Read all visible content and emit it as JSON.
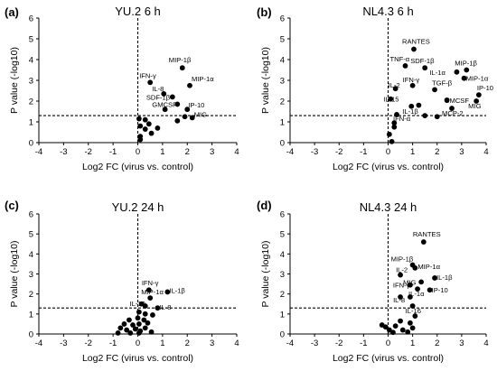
{
  "chart_data": [
    {
      "type": "scatter",
      "letter": "(a)",
      "title": "YU.2 6 h",
      "xlabel": "Log2 FC (virus vs. control)",
      "ylabel": "P value (-log10)",
      "xlim": [
        -4,
        4
      ],
      "ylim": [
        0,
        6
      ],
      "xticks": [
        "-4",
        "-3",
        "-2",
        "-1",
        "0",
        "1",
        "2",
        "3",
        "4"
      ],
      "yticks": [
        "0",
        "1",
        "2",
        "3",
        "4",
        "5",
        "6"
      ],
      "threshold_y": 1.3,
      "threshold_x": 0,
      "points": [
        {
          "x": 1.8,
          "y": 3.6,
          "label": "MIP-1β"
        },
        {
          "x": 2.1,
          "y": 2.75,
          "label": "MIP-1α"
        },
        {
          "x": 0.5,
          "y": 2.9,
          "label": "IFN-γ"
        },
        {
          "x": 1.05,
          "y": 2.35,
          "label": "IL-8"
        },
        {
          "x": 1.4,
          "y": 2.2,
          "label": "SDF-1β"
        },
        {
          "x": 1.6,
          "y": 1.85,
          "label": "GMCSF"
        },
        {
          "x": 2.0,
          "y": 1.6,
          "label": "IP-10"
        },
        {
          "x": 2.2,
          "y": 1.2,
          "label": "MIG"
        },
        {
          "x": 1.1,
          "y": 1.6,
          "label": ""
        },
        {
          "x": 0.05,
          "y": 1.15,
          "label": ""
        },
        {
          "x": 0.3,
          "y": 1.1,
          "label": ""
        },
        {
          "x": 0.45,
          "y": 0.9,
          "label": ""
        },
        {
          "x": 0.1,
          "y": 0.8,
          "label": ""
        },
        {
          "x": 0.3,
          "y": 0.65,
          "label": ""
        },
        {
          "x": 0.8,
          "y": 0.7,
          "label": ""
        },
        {
          "x": 0.55,
          "y": 0.45,
          "label": ""
        },
        {
          "x": 0.1,
          "y": 0.3,
          "label": ""
        },
        {
          "x": 0.1,
          "y": 0.15,
          "label": ""
        },
        {
          "x": 1.6,
          "y": 1.05,
          "label": ""
        },
        {
          "x": 1.9,
          "y": 1.25,
          "label": ""
        }
      ]
    },
    {
      "type": "scatter",
      "letter": "(b)",
      "title": "NL4.3 6 h",
      "xlabel": "Log2 FC (virus vs. control)",
      "ylabel": "P value (-log10)",
      "xlim": [
        -4,
        4
      ],
      "ylim": [
        0,
        6
      ],
      "xticks": [
        "-4",
        "-3",
        "-2",
        "-1",
        "0",
        "1",
        "2",
        "3",
        "4"
      ],
      "yticks": [
        "0",
        "1",
        "2",
        "3",
        "4",
        "5",
        "6"
      ],
      "threshold_y": 1.3,
      "threshold_x": 0,
      "points": [
        {
          "x": 1.05,
          "y": 4.5,
          "label": "RANTES"
        },
        {
          "x": 0.7,
          "y": 3.7,
          "label": "TNF-α"
        },
        {
          "x": 1.5,
          "y": 3.6,
          "label": "SDF-1β"
        },
        {
          "x": 3.2,
          "y": 3.5,
          "label": "MIP-1β"
        },
        {
          "x": 2.8,
          "y": 3.4,
          "label": "IL-1α"
        },
        {
          "x": 3.1,
          "y": 3.1,
          "label": "MIP-1α"
        },
        {
          "x": 1.9,
          "y": 2.55,
          "label": "TGF-β"
        },
        {
          "x": 3.7,
          "y": 2.3,
          "label": "IP-10"
        },
        {
          "x": 0.3,
          "y": 2.6,
          "label": "IL-2"
        },
        {
          "x": 1.0,
          "y": 2.75,
          "label": "IFN-γ"
        },
        {
          "x": 0.1,
          "y": 2.1,
          "label": "IL-15"
        },
        {
          "x": 2.4,
          "y": 2.05,
          "label": "GMCSF"
        },
        {
          "x": 3.6,
          "y": 2.0,
          "label": "MIG"
        },
        {
          "x": 2.6,
          "y": 1.65,
          "label": "MCP-2"
        },
        {
          "x": 0.95,
          "y": 1.75,
          "label": "IL-1β"
        },
        {
          "x": 0.35,
          "y": 1.35,
          "label": "IFN-α"
        },
        {
          "x": 1.25,
          "y": 1.8,
          "label": ""
        },
        {
          "x": 1.5,
          "y": 1.3,
          "label": ""
        },
        {
          "x": 2.0,
          "y": 1.25,
          "label": ""
        },
        {
          "x": 0.25,
          "y": 0.95,
          "label": ""
        },
        {
          "x": 0.25,
          "y": 0.75,
          "label": ""
        },
        {
          "x": 0.15,
          "y": 0.05,
          "label": ""
        },
        {
          "x": 0.05,
          "y": 0.4,
          "label": ""
        }
      ]
    },
    {
      "type": "scatter",
      "letter": "(c)",
      "title": "YU.2 24 h",
      "xlabel": "Log2 FC (virus vs. control)",
      "ylabel": "P value (-log10)",
      "xlim": [
        -4,
        4
      ],
      "ylim": [
        0,
        6
      ],
      "xticks": [
        "-4",
        "-3",
        "-2",
        "-1",
        "0",
        "1",
        "2",
        "3",
        "4"
      ],
      "yticks": [
        "0",
        "1",
        "2",
        "3",
        "4",
        "5",
        "6"
      ],
      "threshold_y": 1.3,
      "threshold_x": 0,
      "points": [
        {
          "x": 1.2,
          "y": 2.1,
          "label": "IL-1β"
        },
        {
          "x": 0.45,
          "y": 2.2,
          "label": "IFN-γ"
        },
        {
          "x": 0.5,
          "y": 1.8,
          "label": "MIP-1α"
        },
        {
          "x": 0.15,
          "y": 1.5,
          "label": "IL-10"
        },
        {
          "x": 0.8,
          "y": 1.3,
          "label": "IL-8"
        },
        {
          "x": 0.3,
          "y": 1.4,
          "label": ""
        },
        {
          "x": 0.05,
          "y": 1.1,
          "label": ""
        },
        {
          "x": 0.3,
          "y": 1.0,
          "label": ""
        },
        {
          "x": 0.6,
          "y": 0.95,
          "label": ""
        },
        {
          "x": -0.35,
          "y": 0.7,
          "label": ""
        },
        {
          "x": 0.0,
          "y": 0.8,
          "label": ""
        },
        {
          "x": 0.25,
          "y": 0.7,
          "label": ""
        },
        {
          "x": -0.55,
          "y": 0.5,
          "label": ""
        },
        {
          "x": -0.2,
          "y": 0.45,
          "label": ""
        },
        {
          "x": 0.05,
          "y": 0.5,
          "label": ""
        },
        {
          "x": 0.4,
          "y": 0.55,
          "label": ""
        },
        {
          "x": -0.7,
          "y": 0.3,
          "label": ""
        },
        {
          "x": -0.45,
          "y": 0.2,
          "label": ""
        },
        {
          "x": -0.1,
          "y": 0.25,
          "label": ""
        },
        {
          "x": 0.1,
          "y": 0.15,
          "label": ""
        },
        {
          "x": 0.3,
          "y": 0.3,
          "label": ""
        },
        {
          "x": -0.8,
          "y": 0.05,
          "label": ""
        },
        {
          "x": -0.3,
          "y": 0.05,
          "label": ""
        },
        {
          "x": 0.05,
          "y": 0.05,
          "label": ""
        },
        {
          "x": 0.55,
          "y": 0.1,
          "label": ""
        }
      ]
    },
    {
      "type": "scatter",
      "letter": "(d)",
      "title": "NL4.3 24 h",
      "xlabel": "Log2 FC (virus vs. control)",
      "ylabel": "P value (-log10)",
      "xlim": [
        -4,
        4
      ],
      "ylim": [
        0,
        6
      ],
      "xticks": [
        "-4",
        "-3",
        "-2",
        "-1",
        "0",
        "1",
        "2",
        "3",
        "4"
      ],
      "yticks": [
        "0",
        "1",
        "2",
        "3",
        "4",
        "5",
        "6"
      ],
      "threshold_y": 1.3,
      "threshold_x": 0,
      "points": [
        {
          "x": 1.45,
          "y": 4.6,
          "label": "RANTES"
        },
        {
          "x": 1.0,
          "y": 3.45,
          "label": "MIP-1β"
        },
        {
          "x": 1.1,
          "y": 3.3,
          "label": "MIP-1α"
        },
        {
          "x": 0.5,
          "y": 2.95,
          "label": "IL-2"
        },
        {
          "x": 1.9,
          "y": 2.8,
          "label": "IL-1β"
        },
        {
          "x": 1.35,
          "y": 2.6,
          "label": "MIG"
        },
        {
          "x": 0.9,
          "y": 2.45,
          "label": "IFN-γ"
        },
        {
          "x": 1.7,
          "y": 2.2,
          "label": "IP-10"
        },
        {
          "x": 1.2,
          "y": 2.25,
          "label": "IL-1α"
        },
        {
          "x": 0.5,
          "y": 1.85,
          "label": "IL-8"
        },
        {
          "x": 1.0,
          "y": 1.4,
          "label": "IL-16"
        },
        {
          "x": 0.9,
          "y": 1.85,
          "label": ""
        },
        {
          "x": 1.1,
          "y": 0.9,
          "label": ""
        },
        {
          "x": 0.5,
          "y": 0.65,
          "label": ""
        },
        {
          "x": 0.3,
          "y": 0.4,
          "label": ""
        },
        {
          "x": -0.25,
          "y": 0.45,
          "label": ""
        },
        {
          "x": -0.1,
          "y": 0.35,
          "label": ""
        },
        {
          "x": 0.05,
          "y": 0.2,
          "label": ""
        },
        {
          "x": 0.6,
          "y": 0.2,
          "label": ""
        },
        {
          "x": 0.9,
          "y": 0.55,
          "label": ""
        },
        {
          "x": 0.8,
          "y": 0.1,
          "label": ""
        },
        {
          "x": 1.0,
          "y": 0.3,
          "label": ""
        },
        {
          "x": 0.2,
          "y": 0.08,
          "label": ""
        }
      ]
    }
  ]
}
